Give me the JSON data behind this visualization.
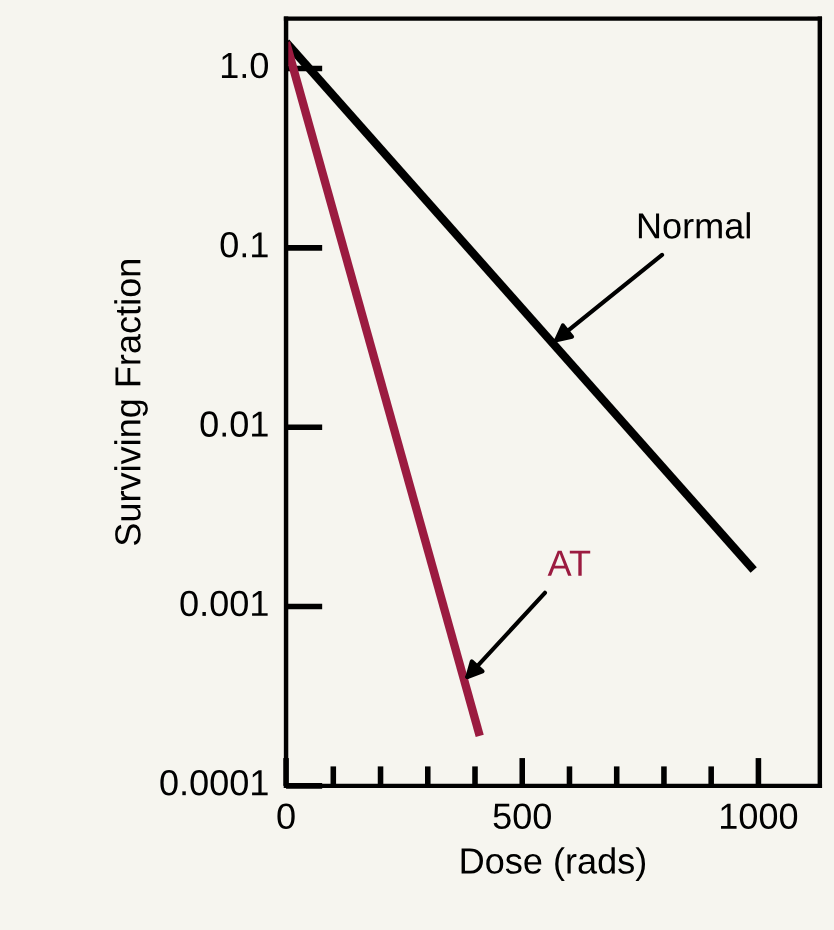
{
  "chart_data": {
    "type": "line",
    "xlabel": "Dose (rads)",
    "ylabel": "Surviving Fraction",
    "log": "y",
    "xlim": [
      0,
      1130
    ],
    "ylim": [
      0.0001,
      1.9
    ],
    "xticks": [
      0,
      {
        "value": 100,
        "label": null
      },
      {
        "value": 200,
        "label": null
      },
      {
        "value": 300,
        "label": null
      },
      {
        "value": 400,
        "label": null
      },
      500,
      {
        "value": 600,
        "label": null
      },
      {
        "value": 700,
        "label": null
      },
      {
        "value": 800,
        "label": null
      },
      {
        "value": 900,
        "label": null
      },
      1000
    ],
    "yticks": [
      {
        "value": 0.0001,
        "label": "0.0001"
      },
      {
        "value": 0.001,
        "label": "0.001"
      },
      {
        "value": 0.01,
        "label": "0.01"
      },
      {
        "value": 0.1,
        "label": "0.1"
      },
      {
        "value": 1,
        "label": "1.0"
      }
    ],
    "grid": false,
    "legend": false,
    "marker": "none",
    "line_style": "solid",
    "series": [
      {
        "name": "Normal",
        "color": "#000000",
        "x": [
          0,
          990
        ],
        "values": [
          1.4,
          0.0016
        ]
      },
      {
        "name": "AT",
        "color": "#9b1b40",
        "x": [
          0,
          410
        ],
        "values": [
          1.4,
          0.00019
        ]
      }
    ]
  }
}
